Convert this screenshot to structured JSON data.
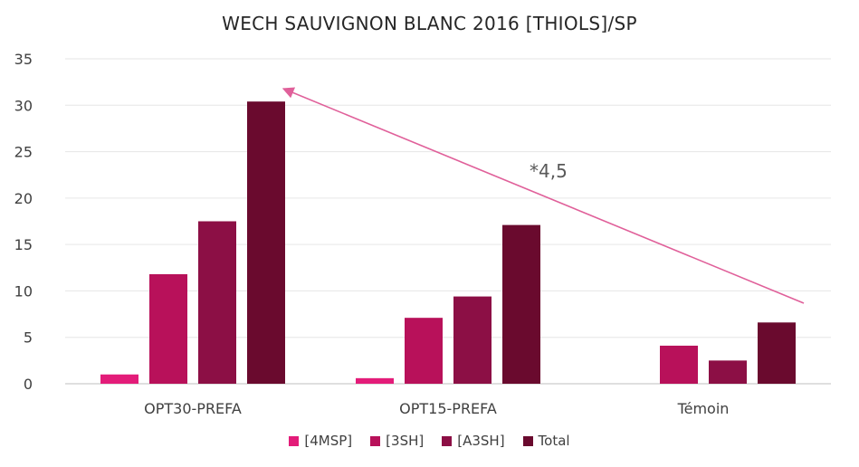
{
  "chart_data": {
    "type": "bar",
    "title": "WECH SAUVIGNON BLANC 2016 [THIOLS]/SP",
    "categories": [
      "OPT30-PREFA",
      "OPT15-PREFA",
      "Témoin"
    ],
    "series": [
      {
        "name": "[4MSP]",
        "color": "#E31C79",
        "values": [
          1.0,
          0.6,
          0
        ]
      },
      {
        "name": "[3SH]",
        "color": "#B8115A",
        "values": [
          11.8,
          7.1,
          4.1
        ]
      },
      {
        "name": "[A3SH]",
        "color": "#8C0F45",
        "values": [
          17.5,
          9.4,
          2.5
        ]
      },
      {
        "name": "Total",
        "color": "#6A0A2E",
        "values": [
          30.4,
          17.1,
          6.6
        ]
      }
    ],
    "ylim": [
      0,
      35
    ],
    "yticks": [
      0,
      5,
      10,
      15,
      20,
      25,
      30,
      35
    ],
    "grid": true,
    "legend_position": "bottom",
    "annotation": {
      "text": "*4,5",
      "color": "#E0609A"
    }
  }
}
